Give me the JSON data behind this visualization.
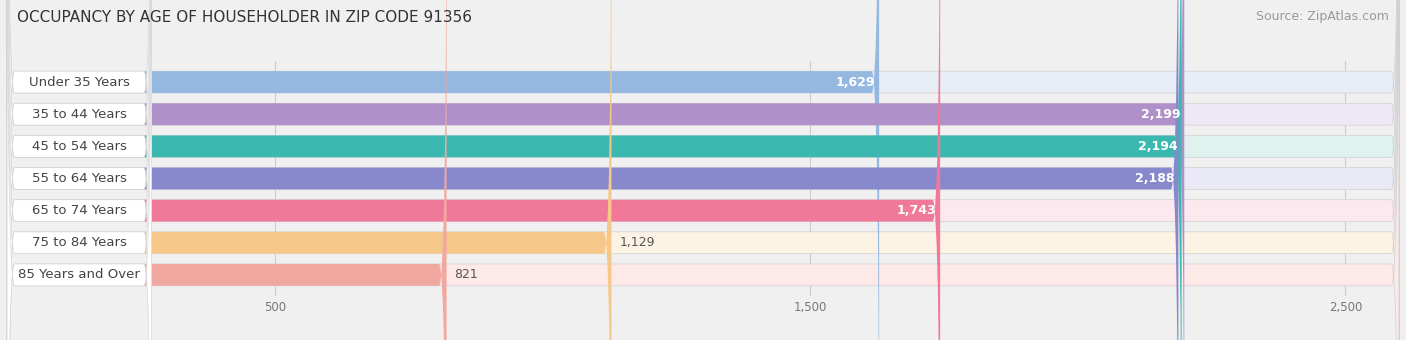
{
  "title": "OCCUPANCY BY AGE OF HOUSEHOLDER IN ZIP CODE 91356",
  "source": "Source: ZipAtlas.com",
  "categories": [
    "Under 35 Years",
    "35 to 44 Years",
    "45 to 54 Years",
    "55 to 64 Years",
    "65 to 74 Years",
    "75 to 84 Years",
    "85 Years and Over"
  ],
  "values": [
    1629,
    2199,
    2194,
    2188,
    1743,
    1129,
    821
  ],
  "bar_colors": [
    "#94b8e0",
    "#b090c8",
    "#3db8b0",
    "#8888cc",
    "#f07898",
    "#f5c88a",
    "#f0a8a0"
  ],
  "bar_bg_colors": [
    "#e8eef6",
    "#eee8f4",
    "#dff2f0",
    "#eaeaf6",
    "#fce8ee",
    "#fdf3e4",
    "#fce9e8"
  ],
  "data_max": 2600,
  "xticks": [
    500,
    1500,
    2500
  ],
  "xtick_labels": [
    "500",
    "1,500",
    "2,500"
  ],
  "title_fontsize": 11,
  "source_fontsize": 9,
  "label_fontsize": 9.5,
  "value_fontsize": 9,
  "bar_height": 0.68,
  "background_color": "#f0f0f0",
  "label_bg_color": "#ffffff",
  "label_color": "#444444",
  "value_color_inside": "#ffffff",
  "value_color_outside": "#555555",
  "value_threshold": 1600,
  "grid_color": "#cccccc"
}
